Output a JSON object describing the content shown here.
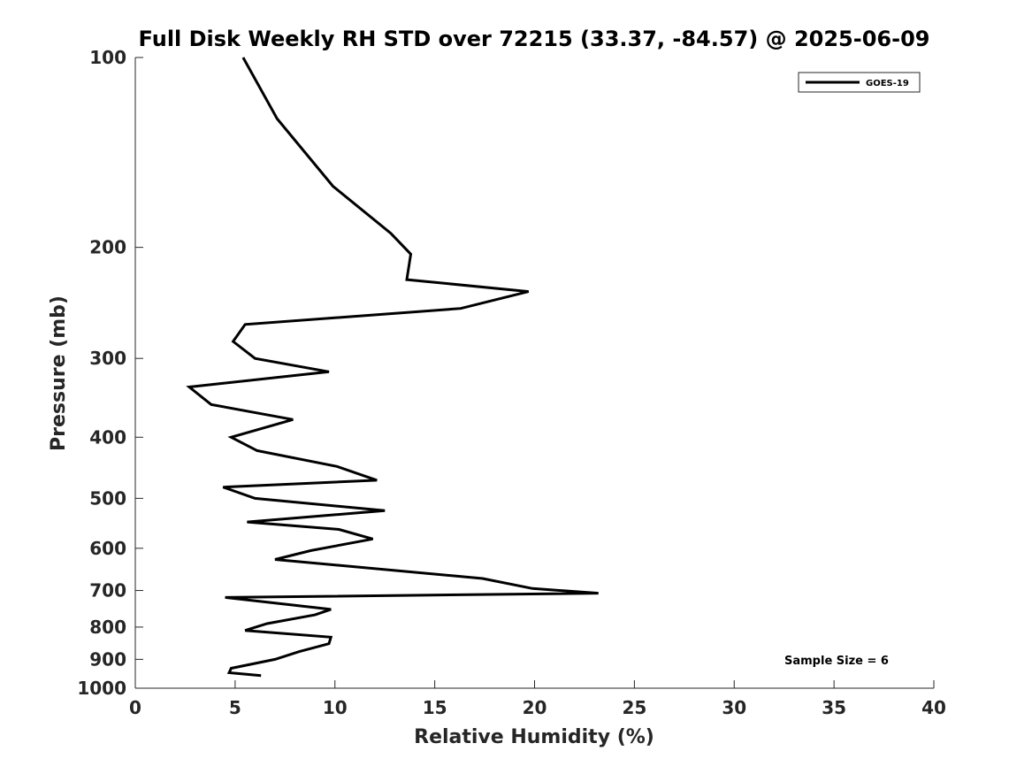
{
  "chart_data": {
    "type": "line",
    "title": "Full Disk Weekly RH STD over 72215 (33.37, -84.57) @ 2025-06-09",
    "xlabel": "Relative Humidity (%)",
    "ylabel": "Pressure (mb)",
    "xlim": [
      0,
      40
    ],
    "ylim": [
      100,
      1000
    ],
    "yscale": "log",
    "y_reversed": true,
    "xticks": [
      0,
      5,
      10,
      15,
      20,
      25,
      30,
      35,
      40
    ],
    "yticks": [
      100,
      200,
      300,
      400,
      500,
      600,
      700,
      800,
      900,
      1000
    ],
    "grid": false,
    "legend": {
      "location": "top-right",
      "entries": [
        "GOES-19"
      ]
    },
    "annotation": "Sample Size = 6",
    "series": [
      {
        "name": "GOES-19",
        "color": "#000000",
        "x": [
          5.4,
          7.1,
          9.9,
          12.8,
          13.8,
          13.6,
          19.7,
          16.3,
          5.5,
          4.9,
          6.0,
          9.7,
          2.7,
          3.8,
          7.9,
          4.8,
          6.1,
          10.1,
          12.1,
          4.4,
          6.0,
          12.5,
          5.6,
          10.2,
          11.9,
          8.8,
          7.0,
          17.4,
          19.9,
          23.2,
          4.5,
          9.8,
          9.0,
          6.6,
          5.5,
          9.8,
          9.7,
          8.2,
          7.0,
          4.8,
          4.7,
          6.3
        ],
        "y": [
          100,
          125,
          160,
          190,
          205,
          225,
          235,
          250,
          265,
          282,
          300,
          315,
          333,
          355,
          375,
          400,
          420,
          445,
          468,
          480,
          500,
          523,
          545,
          560,
          580,
          605,
          625,
          670,
          695,
          707,
          718,
          750,
          765,
          790,
          810,
          830,
          850,
          875,
          900,
          930,
          945,
          955
        ]
      }
    ]
  }
}
